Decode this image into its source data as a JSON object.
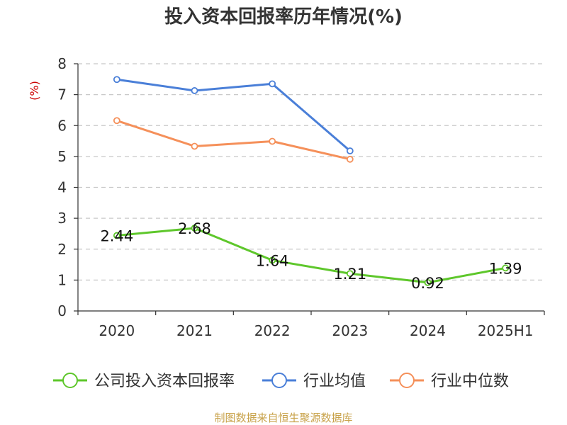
{
  "chart_data": {
    "type": "line",
    "title": "投入资本回报率历年情况(%)",
    "ylabel": "(%)",
    "xlabel": "",
    "categories": [
      "2020",
      "2021",
      "2022",
      "2023",
      "2024",
      "2025H1"
    ],
    "ylim": [
      0,
      8
    ],
    "yticks": [
      0,
      1,
      2,
      3,
      4,
      5,
      6,
      7,
      8
    ],
    "grid": true,
    "legend_position": "bottom",
    "series": [
      {
        "name": "公司投入资本回报率",
        "color": "#5ec72b",
        "values": [
          2.44,
          2.68,
          1.64,
          1.21,
          0.92,
          1.39
        ],
        "labels": [
          "2.44",
          "2.68",
          "1.64",
          "1.21",
          "0.92",
          "1.39"
        ]
      },
      {
        "name": "行业均值",
        "color": "#4a7fd8",
        "values": [
          7.49,
          7.13,
          7.35,
          5.18,
          null,
          null
        ]
      },
      {
        "name": "行业中位数",
        "color": "#f5905a",
        "values": [
          6.16,
          5.33,
          5.49,
          4.91,
          null,
          null
        ]
      }
    ]
  },
  "footer": {
    "source": "制图数据来自恒生聚源数据库"
  }
}
